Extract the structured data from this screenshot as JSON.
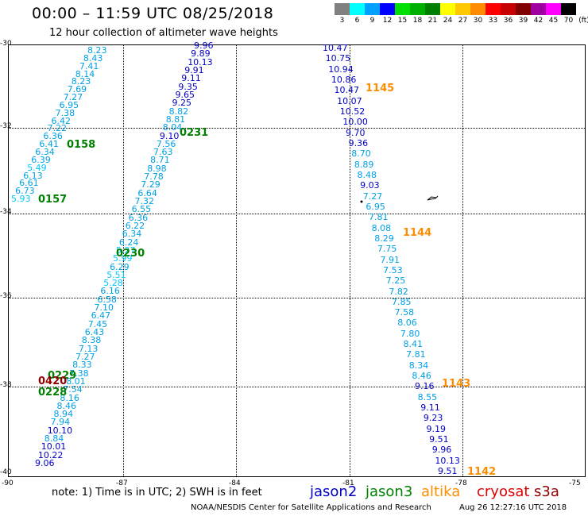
{
  "header": {
    "title": "00:00 – 11:59 UTC 08/25/2018",
    "subtitle": "12 hour collection of altimeter wave heights",
    "unit": "(ft)"
  },
  "scale": [
    {
      "v": "3",
      "c": "#808080"
    },
    {
      "v": "6",
      "c": "#00ffff"
    },
    {
      "v": "9",
      "c": "#00a0ff"
    },
    {
      "v": "12",
      "c": "#0000ff"
    },
    {
      "v": "15",
      "c": "#00e000"
    },
    {
      "v": "18",
      "c": "#00b000"
    },
    {
      "v": "21",
      "c": "#008000"
    },
    {
      "v": "24",
      "c": "#ffff00"
    },
    {
      "v": "27",
      "c": "#ffc800"
    },
    {
      "v": "30",
      "c": "#ff8c00"
    },
    {
      "v": "33",
      "c": "#ff0000"
    },
    {
      "v": "36",
      "c": "#c80000"
    },
    {
      "v": "39",
      "c": "#800000"
    },
    {
      "v": "42",
      "c": "#a000a0"
    },
    {
      "v": "45",
      "c": "#ff00ff"
    },
    {
      "v": "70",
      "c": "#000000"
    }
  ],
  "lat_labels": [
    "-30",
    "-32",
    "-34",
    "-36",
    "-38",
    "-40"
  ],
  "lon_labels": [
    "-90",
    "-87",
    "-84",
    "-81",
    "-78",
    "-75"
  ],
  "track_a": [
    "8.23",
    "8.43",
    "7.41",
    "8.14",
    "8.23",
    "7.69",
    "7.27",
    "6.95",
    "7.38",
    "6.42",
    "7.22",
    "6.36",
    "6.41",
    "6.34",
    "6.39",
    "5.49",
    "6.13",
    "6.61",
    "6.73",
    "5.93"
  ],
  "track_b": [
    "9.96",
    "9.89",
    "10.13",
    "9.91",
    "9.11",
    "9.35",
    "9.65",
    "9.25",
    "8.82",
    "8.81",
    "8.04",
    "9.10",
    "7.56",
    "7.63",
    "8.71",
    "8.98",
    "7.78",
    "7.29",
    "6.64",
    "7.32",
    "6.55",
    "6.36",
    "6.22",
    "6.34",
    "6.24",
    "5.27",
    "5.99",
    "6.29",
    "5.51",
    "5.28",
    "6.16",
    "6.58",
    "7.10",
    "6.47",
    "7.45",
    "6.43",
    "8.38",
    "7.13",
    "7.27",
    "8.33",
    "7.38",
    "8.01",
    "7.54",
    "8.16",
    "8.46",
    "8.94",
    "7.94",
    "10.10",
    "8.84",
    "10.01",
    "10.22",
    "9.06"
  ],
  "track_c": [
    "10.47",
    "10.75",
    "10.94",
    "10.86",
    "10.47",
    "10.07",
    "10.52",
    "10.00",
    "9.70",
    "9.36",
    "8.70",
    "8.89",
    "8.48",
    "9.03",
    "7.27",
    "6.95",
    "7.81",
    "8.08",
    "8.29",
    "7.75",
    "7.91",
    "7.53",
    "7.25",
    "7.82",
    "7.85",
    "7.58",
    "8.06",
    "7.80",
    "8.41",
    "7.81",
    "8.34",
    "8.46",
    "9.16",
    "8.55",
    "9.11",
    "9.23",
    "9.19",
    "9.51",
    "9.96",
    "10.13",
    "9.51"
  ],
  "times": {
    "t0158": "0158",
    "t0157": "0157",
    "t0231": "0231",
    "t0230": "0230",
    "t0229": "0229",
    "t0228": "0228",
    "t0420": "0420",
    "t1145": "1145",
    "t1144": "1144",
    "t1143": "1143",
    "t1142": "1142"
  },
  "footer": {
    "note": "note:  1) Time is in UTC;  2) SWH is in feet",
    "satellites": [
      {
        "name": "jason2",
        "c": "#0000c8"
      },
      {
        "name": "jason3",
        "c": "#008000"
      },
      {
        "name": "altika",
        "c": "#ff8c00"
      },
      {
        "name": "cryosat",
        "c": "#e00000"
      },
      {
        "name": "s3a",
        "c": "#900000"
      }
    ],
    "credit": "NOAA/NESDIS Center for Satellite Applications and Research",
    "stamp": "Aug 26 12:27:16 UTC 2018"
  }
}
